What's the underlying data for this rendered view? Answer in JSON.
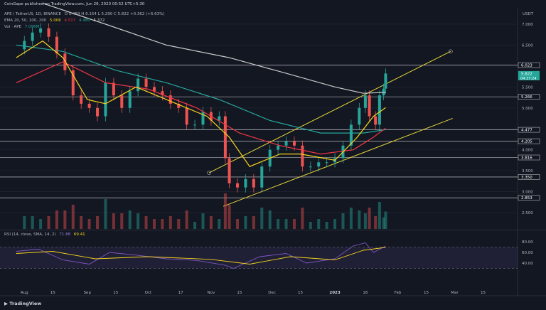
{
  "header": {
    "published": "CoinGape published on TradingView.com, Jun 26, 2023 00:52 UTC+5:30",
    "symbol": "APE / TetherUS, 1D, BINANCE",
    "ohlc": "O 5.459  H 6.154  L 5.290  C 5.822  +0.362 (+6.63%)",
    "ema_label": "EMA 20, 50, 100, 200",
    "ema_values": [
      "5.006",
      "4.517",
      "4.480",
      "5.372"
    ],
    "vol_label": "Vol · APE",
    "vol_value": "7.096M",
    "currency": "USDT"
  },
  "rsi_panel": {
    "label": "RSI (14, close, SMA, 14, 2)",
    "rsi_value": "71.88",
    "sma_value": "69.41",
    "ticks": [
      "80.00",
      "60.00",
      "40.00"
    ]
  },
  "footer": {
    "brand": "TradingView"
  },
  "colors": {
    "background": "#131722",
    "bullish": "#26a69a",
    "bearish": "#ef5350",
    "ema20": "#f7d51c",
    "ema50": "#f23645",
    "ema100": "#26a69a",
    "ema200": "#c9c9c9",
    "channel": "#e8d63a",
    "rsi": "#7e57c2"
  },
  "chart_data": {
    "type": "line",
    "instrument": "APE/USDT",
    "timeframe": "1D",
    "price_axis_ticks": [
      7.0,
      6.5,
      6.0,
      5.5,
      5.0,
      4.5,
      4.0,
      3.5,
      3.0,
      2.5
    ],
    "ylim": [
      2.3,
      7.6
    ],
    "x_tick_labels": [
      "Aug",
      "15",
      "Sep",
      "15",
      "Oct",
      "17",
      "Nov",
      "15",
      "Dec",
      "15",
      "2023",
      "16",
      "Feb",
      "15",
      "Mar",
      "15"
    ],
    "horizontal_levels": [
      6.023,
      5.266,
      4.477,
      4.205,
      3.816,
      3.35,
      2.853
    ],
    "last_price": "5.822",
    "countdown": "04:37:24",
    "price_labels": [
      "6.023",
      "5.822",
      "5.266",
      "4.477",
      "4.205",
      "3.816",
      "3.350",
      "2.853"
    ],
    "close_series": [
      {
        "d": "2022-07-28",
        "v": 6.4
      },
      {
        "d": "2022-08-01",
        "v": 6.6
      },
      {
        "d": "2022-08-05",
        "v": 6.8
      },
      {
        "d": "2022-08-09",
        "v": 6.9
      },
      {
        "d": "2022-08-13",
        "v": 6.7
      },
      {
        "d": "2022-08-17",
        "v": 6.3
      },
      {
        "d": "2022-08-21",
        "v": 5.9
      },
      {
        "d": "2022-08-25",
        "v": 5.3
      },
      {
        "d": "2022-08-29",
        "v": 5.1
      },
      {
        "d": "2022-09-02",
        "v": 5.0
      },
      {
        "d": "2022-09-06",
        "v": 4.8
      },
      {
        "d": "2022-09-10",
        "v": 5.6
      },
      {
        "d": "2022-09-14",
        "v": 5.3
      },
      {
        "d": "2022-09-18",
        "v": 5.0
      },
      {
        "d": "2022-09-22",
        "v": 5.4
      },
      {
        "d": "2022-09-26",
        "v": 5.7
      },
      {
        "d": "2022-09-30",
        "v": 5.5
      },
      {
        "d": "2022-10-04",
        "v": 5.4
      },
      {
        "d": "2022-10-08",
        "v": 5.3
      },
      {
        "d": "2022-10-12",
        "v": 5.1
      },
      {
        "d": "2022-10-16",
        "v": 5.0
      },
      {
        "d": "2022-10-20",
        "v": 4.6
      },
      {
        "d": "2022-10-24",
        "v": 4.6
      },
      {
        "d": "2022-10-28",
        "v": 4.9
      },
      {
        "d": "2022-11-01",
        "v": 4.7
      },
      {
        "d": "2022-11-05",
        "v": 4.8
      },
      {
        "d": "2022-11-08",
        "v": 3.8
      },
      {
        "d": "2022-11-10",
        "v": 3.2
      },
      {
        "d": "2022-11-14",
        "v": 3.1
      },
      {
        "d": "2022-11-18",
        "v": 3.3
      },
      {
        "d": "2022-11-22",
        "v": 3.1
      },
      {
        "d": "2022-11-26",
        "v": 3.6
      },
      {
        "d": "2022-11-30",
        "v": 4.0
      },
      {
        "d": "2022-12-04",
        "v": 4.1
      },
      {
        "d": "2022-12-08",
        "v": 4.2
      },
      {
        "d": "2022-12-12",
        "v": 4.1
      },
      {
        "d": "2022-12-16",
        "v": 3.6
      },
      {
        "d": "2022-12-20",
        "v": 3.6
      },
      {
        "d": "2022-12-24",
        "v": 3.7
      },
      {
        "d": "2022-12-28",
        "v": 3.7
      },
      {
        "d": "2023-01-01",
        "v": 3.8
      },
      {
        "d": "2023-01-05",
        "v": 4.1
      },
      {
        "d": "2023-01-09",
        "v": 4.6
      },
      {
        "d": "2023-01-13",
        "v": 5.0
      },
      {
        "d": "2023-01-16",
        "v": 5.3
      },
      {
        "d": "2023-01-18",
        "v": 4.8
      },
      {
        "d": "2023-01-21",
        "v": 4.6
      },
      {
        "d": "2023-01-23",
        "v": 5.3
      },
      {
        "d": "2023-01-25",
        "v": 5.46
      },
      {
        "d": "2023-01-26",
        "v": 5.822
      }
    ],
    "ema20": [
      {
        "d": "2022-07-28",
        "v": 6.2
      },
      {
        "d": "2022-08-10",
        "v": 6.6
      },
      {
        "d": "2022-08-20",
        "v": 6.2
      },
      {
        "d": "2022-09-01",
        "v": 5.2
      },
      {
        "d": "2022-09-10",
        "v": 5.1
      },
      {
        "d": "2022-09-25",
        "v": 5.5
      },
      {
        "d": "2022-10-15",
        "v": 5.1
      },
      {
        "d": "2022-10-30",
        "v": 4.8
      },
      {
        "d": "2022-11-10",
        "v": 4.3
      },
      {
        "d": "2022-11-20",
        "v": 3.6
      },
      {
        "d": "2022-12-05",
        "v": 3.9
      },
      {
        "d": "2022-12-15",
        "v": 3.9
      },
      {
        "d": "2023-01-01",
        "v": 3.75
      },
      {
        "d": "2023-01-12",
        "v": 4.3
      },
      {
        "d": "2023-01-20",
        "v": 4.8
      },
      {
        "d": "2023-01-26",
        "v": 5.006
      }
    ],
    "ema50": [
      {
        "d": "2022-07-28",
        "v": 5.6
      },
      {
        "d": "2022-08-20",
        "v": 6.1
      },
      {
        "d": "2022-09-10",
        "v": 5.6
      },
      {
        "d": "2022-10-01",
        "v": 5.45
      },
      {
        "d": "2022-10-25",
        "v": 5.0
      },
      {
        "d": "2022-11-15",
        "v": 4.4
      },
      {
        "d": "2022-12-05",
        "v": 4.1
      },
      {
        "d": "2022-12-25",
        "v": 3.9
      },
      {
        "d": "2023-01-10",
        "v": 4.0
      },
      {
        "d": "2023-01-20",
        "v": 4.3
      },
      {
        "d": "2023-01-26",
        "v": 4.517
      }
    ],
    "ema100": [
      {
        "d": "2022-07-28",
        "v": 6.5
      },
      {
        "d": "2022-08-20",
        "v": 6.35
      },
      {
        "d": "2022-09-15",
        "v": 5.9
      },
      {
        "d": "2022-10-10",
        "v": 5.6
      },
      {
        "d": "2022-11-05",
        "v": 5.2
      },
      {
        "d": "2022-11-30",
        "v": 4.7
      },
      {
        "d": "2022-12-25",
        "v": 4.4
      },
      {
        "d": "2023-01-15",
        "v": 4.4
      },
      {
        "d": "2023-01-26",
        "v": 4.48
      }
    ],
    "ema200": [
      {
        "d": "2022-08-10",
        "v": 7.5
      },
      {
        "d": "2022-09-10",
        "v": 7.0
      },
      {
        "d": "2022-10-10",
        "v": 6.5
      },
      {
        "d": "2022-11-10",
        "v": 6.2
      },
      {
        "d": "2022-12-10",
        "v": 5.8
      },
      {
        "d": "2023-01-01",
        "v": 5.5
      },
      {
        "d": "2023-01-15",
        "v": 5.35
      },
      {
        "d": "2023-01-26",
        "v": 5.372
      }
    ],
    "channel_upper": [
      {
        "d": "2022-10-31",
        "v": 3.45
      },
      {
        "d": "2023-02-27",
        "v": 6.35
      }
    ],
    "channel_lower": [
      {
        "d": "2022-11-07",
        "v": 2.65
      },
      {
        "d": "2023-02-28",
        "v": 4.75
      }
    ],
    "rsi_ticks": [
      80,
      60,
      40
    ],
    "rsi_series": [
      {
        "d": "2022-07-28",
        "v": 62
      },
      {
        "d": "2022-08-08",
        "v": 66
      },
      {
        "d": "2022-08-20",
        "v": 46
      },
      {
        "d": "2022-09-02",
        "v": 38
      },
      {
        "d": "2022-09-12",
        "v": 60
      },
      {
        "d": "2022-09-25",
        "v": 55
      },
      {
        "d": "2022-10-10",
        "v": 48
      },
      {
        "d": "2022-10-25",
        "v": 45
      },
      {
        "d": "2022-11-08",
        "v": 36
      },
      {
        "d": "2022-11-12",
        "v": 30
      },
      {
        "d": "2022-11-25",
        "v": 52
      },
      {
        "d": "2022-12-08",
        "v": 58
      },
      {
        "d": "2022-12-18",
        "v": 40
      },
      {
        "d": "2023-01-01",
        "v": 48
      },
      {
        "d": "2023-01-10",
        "v": 72
      },
      {
        "d": "2023-01-16",
        "v": 78
      },
      {
        "d": "2023-01-20",
        "v": 60
      },
      {
        "d": "2023-01-26",
        "v": 71.88
      }
    ],
    "rsi_sma": [
      {
        "d": "2022-07-28",
        "v": 58
      },
      {
        "d": "2022-08-15",
        "v": 62
      },
      {
        "d": "2022-09-05",
        "v": 48
      },
      {
        "d": "2022-10-01",
        "v": 52
      },
      {
        "d": "2022-11-01",
        "v": 47
      },
      {
        "d": "2022-11-20",
        "v": 38
      },
      {
        "d": "2022-12-10",
        "v": 52
      },
      {
        "d": "2023-01-01",
        "v": 46
      },
      {
        "d": "2023-01-15",
        "v": 64
      },
      {
        "d": "2023-01-26",
        "v": 69.41
      }
    ]
  }
}
